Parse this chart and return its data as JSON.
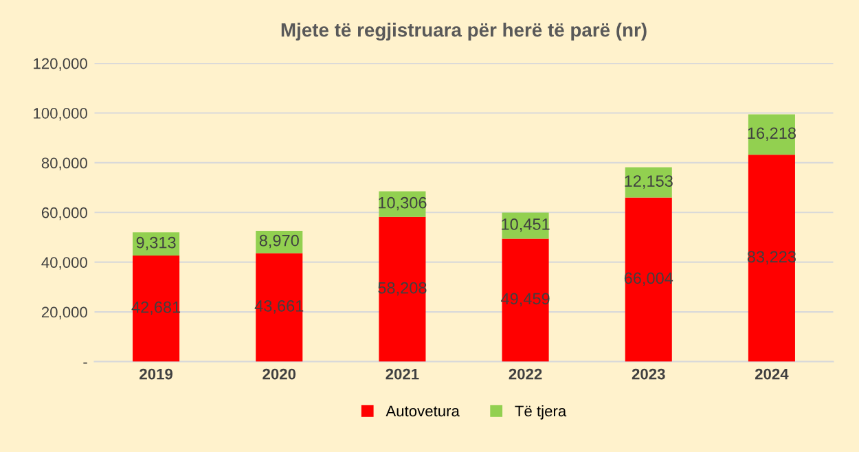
{
  "chart_data": {
    "type": "bar",
    "title": "Mjete të regjistruara për herë të parë (nr)",
    "stacked": true,
    "categories": [
      "2019",
      "2020",
      "2021",
      "2022",
      "2023",
      "2024"
    ],
    "series": [
      {
        "name": "Autovetura",
        "color": "#ff0000",
        "values": [
          42681,
          43661,
          58208,
          49459,
          66004,
          83223
        ],
        "value_labels": [
          "42,681",
          "43,661",
          "58,208",
          "49,459",
          "66,004",
          "83,223"
        ]
      },
      {
        "name": "Të tjera",
        "color": "#92d050",
        "values": [
          9313,
          8970,
          10306,
          10451,
          12153,
          16218
        ],
        "value_labels": [
          "9,313",
          "8,970",
          "10,306",
          "10,451",
          "12,153",
          "16,218"
        ]
      }
    ],
    "ylim": [
      0,
      120000
    ],
    "yticks": [
      {
        "value": 0,
        "label": "-"
      },
      {
        "value": 20000,
        "label": "20,000"
      },
      {
        "value": 40000,
        "label": "40,000"
      },
      {
        "value": 60000,
        "label": "60,000"
      },
      {
        "value": 80000,
        "label": "80,000"
      },
      {
        "value": 100000,
        "label": "100,000"
      },
      {
        "value": 120000,
        "label": "120,000"
      }
    ],
    "grid": "y",
    "legend": "bottom"
  }
}
